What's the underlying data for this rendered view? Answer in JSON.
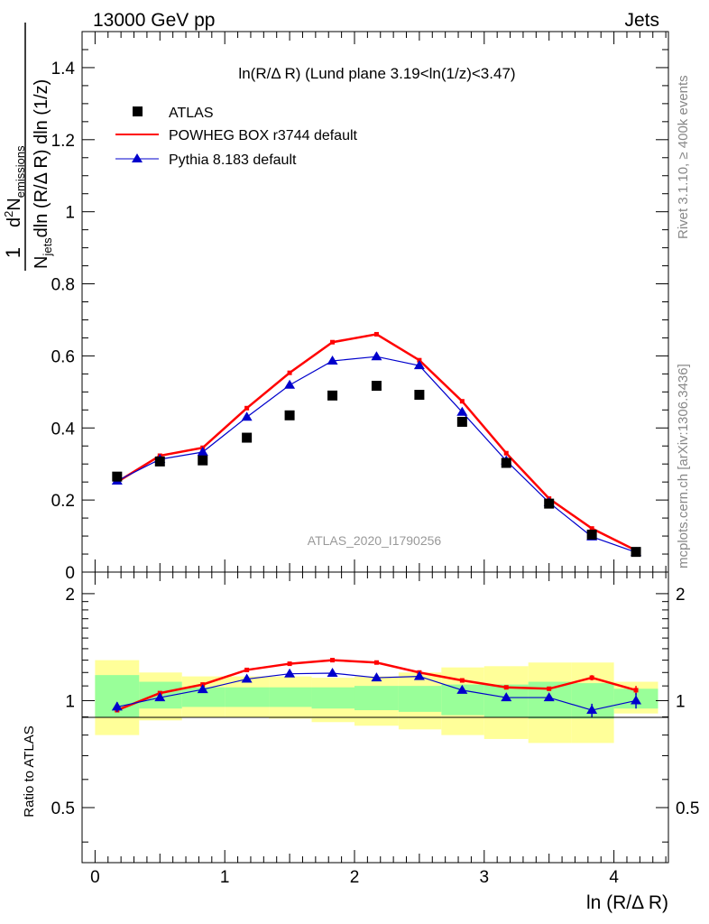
{
  "header": {
    "left": "13000 GeV pp",
    "right": "Jets"
  },
  "side_labels": {
    "rivet": "Rivet 3.1.10, ≥ 400k events",
    "mcplots": "mcplots.cern.ch [arXiv:1306.3436]"
  },
  "watermark": "ATLAS_2020_I1790256",
  "plot_title": "ln(R/Δ R) (Lund plane 3.19<ln(1/z)<3.47)",
  "ylabel_main": {
    "one": "1",
    "njets": "N",
    "njets_sub": "jets",
    "den_rest": "dln (R/Δ R) dln (1/z)",
    "num_d": "d",
    "num_sup": "2",
    "num_n": "N",
    "num_sub": "emissions"
  },
  "ylabel_ratio": "Ratio to ATLAS",
  "xlabel": "ln (R/Δ R)",
  "legend": [
    {
      "label": "ATLAS",
      "color": "#000000",
      "marker": "square"
    },
    {
      "label": "POWHEG BOX r3744 default",
      "color": "#ff0000",
      "marker": "line"
    },
    {
      "label": "Pythia 8.183 default",
      "color": "#0000cc",
      "marker": "triangle"
    }
  ],
  "chart_data": {
    "type": "line",
    "x": [
      0.17,
      0.5,
      0.83,
      1.17,
      1.5,
      1.83,
      2.17,
      2.5,
      2.83,
      3.17,
      3.5,
      3.83,
      4.17
    ],
    "xlim": [
      -0.1,
      4.42
    ],
    "xticks": [
      "0",
      "1",
      "2",
      "3",
      "4"
    ],
    "main_ylim": [
      0,
      1.5
    ],
    "main_yticks": [
      "0",
      "0.2",
      "0.4",
      "0.6",
      "0.8",
      "1",
      "1.2",
      "1.4"
    ],
    "ratio_ylim": [
      0.35,
      2.3
    ],
    "ratio_yticks": [
      "0.5",
      "1",
      "2"
    ],
    "series": [
      {
        "name": "ATLAS",
        "color": "#000000",
        "values": [
          0.265,
          0.307,
          0.31,
          0.373,
          0.435,
          0.49,
          0.517,
          0.492,
          0.417,
          0.303,
          0.19,
          0.104,
          0.056
        ]
      },
      {
        "name": "POWHEG BOX r3744 default",
        "color": "#ff0000",
        "values": [
          0.25,
          0.323,
          0.345,
          0.455,
          0.553,
          0.638,
          0.66,
          0.588,
          0.474,
          0.33,
          0.204,
          0.121,
          0.06
        ]
      },
      {
        "name": "Pythia 8.183 default",
        "color": "#0000cc",
        "values": [
          0.253,
          0.313,
          0.333,
          0.43,
          0.519,
          0.586,
          0.598,
          0.573,
          0.444,
          0.309,
          0.193,
          0.098,
          0.055
        ]
      }
    ],
    "ratio": {
      "powheg": [
        0.94,
        1.05,
        1.11,
        1.22,
        1.27,
        1.3,
        1.28,
        1.2,
        1.14,
        1.09,
        1.08,
        1.16,
        1.07
      ],
      "pythia": [
        0.96,
        1.02,
        1.075,
        1.15,
        1.19,
        1.195,
        1.16,
        1.17,
        1.07,
        1.02,
        1.02,
        0.94,
        1.0
      ],
      "pythia_err": [
        0.03,
        0.01,
        0.01,
        0.01,
        0.01,
        0.01,
        0.01,
        0.01,
        0.01,
        0.01,
        0.02,
        0.04,
        0.05
      ],
      "powheg_err": [
        0.01,
        0.01,
        0.01,
        0.01,
        0.01,
        0.01,
        0.01,
        0.01,
        0.01,
        0.01,
        0.01,
        0.02,
        0.03
      ],
      "band_edges": [
        0.0,
        0.34,
        0.67,
        1.0,
        1.34,
        1.67,
        2.0,
        2.34,
        2.67,
        3.0,
        3.34,
        3.67,
        4.0,
        4.34
      ],
      "green_band": [
        [
          0.9,
          1.18
        ],
        [
          0.95,
          1.13
        ],
        [
          0.96,
          1.09
        ],
        [
          0.96,
          1.09
        ],
        [
          0.96,
          1.09
        ],
        [
          0.95,
          1.09
        ],
        [
          0.94,
          1.1
        ],
        [
          0.93,
          1.1
        ],
        [
          0.91,
          1.11
        ],
        [
          0.9,
          1.11
        ],
        [
          0.89,
          1.13
        ],
        [
          0.89,
          1.12
        ],
        [
          0.95,
          1.08
        ]
      ],
      "yellow_band": [
        [
          0.8,
          1.3
        ],
        [
          0.88,
          1.2
        ],
        [
          0.9,
          1.17
        ],
        [
          0.9,
          1.17
        ],
        [
          0.89,
          1.17
        ],
        [
          0.87,
          1.16
        ],
        [
          0.85,
          1.17
        ],
        [
          0.83,
          1.2
        ],
        [
          0.8,
          1.24
        ],
        [
          0.78,
          1.25
        ],
        [
          0.76,
          1.28
        ],
        [
          0.76,
          1.28
        ],
        [
          0.92,
          1.13
        ]
      ]
    }
  }
}
